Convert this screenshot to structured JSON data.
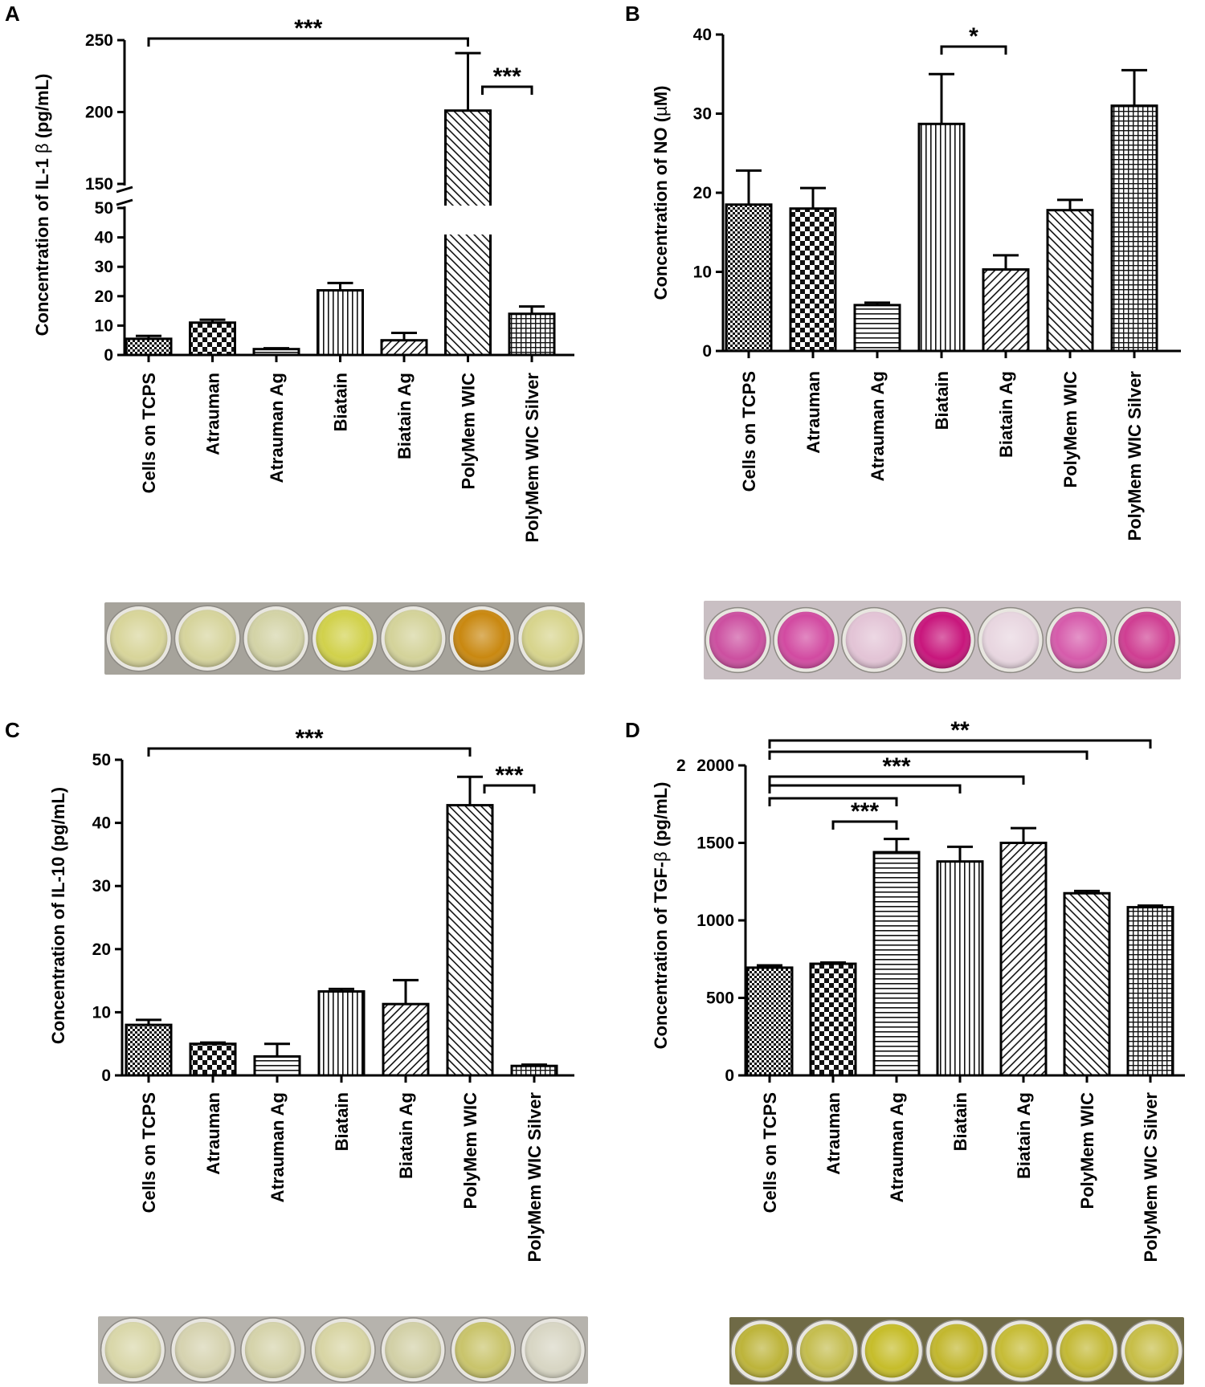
{
  "panels": [
    {
      "letter": "A",
      "chart_data": {
        "type": "bar",
        "ylabel_prefix": "Concentration of IL-1 ",
        "ylabel_symbol": "β",
        "ylabel_suffix": " (pg/mL)",
        "categories": [
          "Cells on TCPS",
          "Atrauman",
          "Atrauman Ag",
          "Biatain",
          "Biatain Ag",
          "PolyMem WIC",
          "PolyMem WIC Silver"
        ],
        "values": [
          5.5,
          11,
          2,
          22,
          5,
          201,
          14
        ],
        "errors": [
          1,
          1,
          0.3,
          2.5,
          2.5,
          40,
          2.5
        ],
        "patterns": [
          "dense-check",
          "checker",
          "horizontal",
          "vertical",
          "diag-right",
          "diag-left",
          "grid"
        ],
        "axis_break": {
          "lower": [
            0,
            50
          ],
          "upper": [
            150,
            250
          ]
        },
        "yticks_lower": [
          0,
          10,
          20,
          30,
          40,
          50
        ],
        "yticks_upper": [
          150,
          200,
          250
        ],
        "significance": [
          {
            "from": 0,
            "to": 5,
            "label": "***"
          },
          {
            "from": 5,
            "to": 6,
            "label": "***"
          }
        ]
      },
      "plate": {
        "well_colors": [
          "#d8d59a",
          "#d6d49c",
          "#d3d3a6",
          "#d1d14b",
          "#d4d39a",
          "#c98810",
          "#d7d48c"
        ],
        "background": "#a6a39b"
      }
    },
    {
      "letter": "B",
      "chart_data": {
        "type": "bar",
        "ylabel_prefix": "Concentration of NO (",
        "ylabel_symbol": "µ",
        "ylabel_suffix": "M)",
        "categories": [
          "Cells on TCPS",
          "Atrauman",
          "Atrauman Ag",
          "Biatain",
          "Biatain Ag",
          "PolyMem WIC",
          "PolyMem WIC Silver"
        ],
        "values": [
          18.5,
          18,
          5.8,
          28.7,
          10.3,
          17.8,
          31
        ],
        "errors": [
          4.3,
          2.6,
          0.3,
          6.3,
          1.8,
          1.3,
          4.5
        ],
        "patterns": [
          "dense-check",
          "checker",
          "horizontal",
          "vertical",
          "diag-right",
          "diag-left",
          "grid"
        ],
        "ylim": [
          0,
          40
        ],
        "yticks": [
          0,
          10,
          20,
          30,
          40
        ],
        "significance": [
          {
            "from": 3,
            "to": 4,
            "label": "*"
          }
        ]
      },
      "plate": {
        "well_colors": [
          "#cc4fa0",
          "#d24aa1",
          "#e3c4d6",
          "#c8167c",
          "#e8d6e0",
          "#d65bab",
          "#cf3e92"
        ],
        "background": "#c9bfc3"
      }
    },
    {
      "letter": "C",
      "chart_data": {
        "type": "bar",
        "ylabel_prefix": "Concentration of IL-10 (pg/mL)",
        "ylabel_symbol": "",
        "ylabel_suffix": "",
        "categories": [
          "Cells on TCPS",
          "Atrauman",
          "Atrauman Ag",
          "Biatain",
          "Biatain Ag",
          "PolyMem WIC",
          "PolyMem WIC Silver"
        ],
        "values": [
          8,
          5,
          3,
          13.3,
          11.3,
          42.8,
          1.5
        ],
        "errors": [
          0.8,
          0.2,
          2,
          0.4,
          3.8,
          4.5,
          0.2
        ],
        "patterns": [
          "dense-check",
          "checker",
          "horizontal",
          "vertical",
          "diag-right",
          "diag-left",
          "grid"
        ],
        "ylim": [
          0,
          50
        ],
        "yticks": [
          0,
          10,
          20,
          30,
          40,
          50
        ],
        "significance": [
          {
            "from": 0,
            "to": 5,
            "label": "***"
          },
          {
            "from": 5,
            "to": 6,
            "label": "***"
          }
        ]
      },
      "plate": {
        "well_colors": [
          "#d9d7a9",
          "#d6d3b0",
          "#d5d3aa",
          "#d8d5a4",
          "#d2d0a6",
          "#c9c46b",
          "#d8d6c4"
        ],
        "background": "#b6b3ad"
      }
    },
    {
      "letter": "D",
      "chart_data": {
        "type": "bar",
        "ylabel_prefix": "Concentration of TGF-",
        "ylabel_symbol": "β",
        "ylabel_suffix": " (pg/mL)",
        "categories": [
          "Cells on TCPS",
          "Atrauman",
          "Atrauman Ag",
          "Biatain",
          "Biatain Ag",
          "PolyMem WIC",
          "PolyMem WIC Silver"
        ],
        "values": [
          695,
          720,
          1440,
          1380,
          1500,
          1175,
          1085
        ],
        "errors": [
          15,
          8,
          85,
          95,
          95,
          15,
          10
        ],
        "patterns": [
          "dense-check",
          "checker",
          "horizontal",
          "vertical",
          "diag-right",
          "diag-left",
          "grid"
        ],
        "ylim": [
          0,
          2000
        ],
        "yticks": [
          0,
          500,
          1000,
          1500,
          2000
        ],
        "tick_overlay": "2",
        "significance": [
          {
            "from": 0,
            "to": 6,
            "label": "**"
          },
          {
            "from": 0,
            "to": 5,
            "label": ""
          },
          {
            "from": 0,
            "to": 4,
            "label": "***"
          },
          {
            "from": 0,
            "to": 3,
            "label": ""
          },
          {
            "from": 0,
            "to": 2,
            "label": ""
          },
          {
            "from": 1,
            "to": 2,
            "label": "***"
          }
        ]
      },
      "plate": {
        "well_colors": [
          "#bdb43a",
          "#c4bd4e",
          "#c6bd2a",
          "#c2b72e",
          "#c6bc36",
          "#c3b935",
          "#c7be47"
        ],
        "background": "#6f6a46"
      }
    }
  ]
}
